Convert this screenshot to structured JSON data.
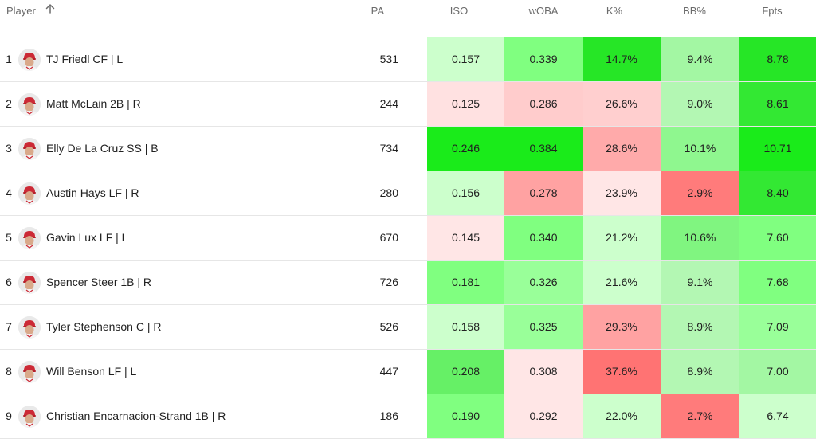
{
  "table": {
    "columns": {
      "player": "Player",
      "pa": "PA",
      "iso": "ISO",
      "woba": "wOBA",
      "k": "K%",
      "bb": "BB%",
      "fpts": "Fpts"
    },
    "sort_icon": "arrow-up-icon",
    "rows": [
      {
        "rank": "1",
        "player": "TJ Friedl CF | L",
        "pa": "531",
        "iso": "0.157",
        "woba": "0.339",
        "k": "14.7%",
        "bb": "9.4%",
        "fpts": "8.78",
        "colors": {
          "iso": "#ccffcc",
          "woba": "#80ff80",
          "k": "#26e626",
          "bb": "#a3f7a3",
          "fpts": "#26e626"
        }
      },
      {
        "rank": "2",
        "player": "Matt McLain 2B | R",
        "pa": "244",
        "iso": "0.125",
        "woba": "0.286",
        "k": "26.6%",
        "bb": "9.0%",
        "fpts": "8.61",
        "colors": {
          "iso": "#ffe1e1",
          "woba": "#ffcccc",
          "k": "#ffcfcf",
          "bb": "#b3f7b3",
          "fpts": "#33e833"
        }
      },
      {
        "rank": "3",
        "player": "Elly De La Cruz SS | B",
        "pa": "734",
        "iso": "0.246",
        "woba": "0.384",
        "k": "28.6%",
        "bb": "10.1%",
        "fpts": "10.71",
        "colors": {
          "iso": "#1aeb1a",
          "woba": "#1aeb1a",
          "k": "#ffaaaa",
          "bb": "#8ff78f",
          "fpts": "#1aeb1a"
        }
      },
      {
        "rank": "4",
        "player": "Austin Hays LF | R",
        "pa": "280",
        "iso": "0.156",
        "woba": "0.278",
        "k": "23.9%",
        "bb": "2.9%",
        "fpts": "8.40",
        "colors": {
          "iso": "#ccffcc",
          "woba": "#ffa2a2",
          "k": "#ffe6e6",
          "bb": "#ff7b7b",
          "fpts": "#33e833"
        }
      },
      {
        "rank": "5",
        "player": "Gavin Lux LF | L",
        "pa": "670",
        "iso": "0.145",
        "woba": "0.340",
        "k": "21.2%",
        "bb": "10.6%",
        "fpts": "7.60",
        "colors": {
          "iso": "#ffe6e6",
          "woba": "#80ff80",
          "k": "#ccffcc",
          "bb": "#80f580",
          "fpts": "#80ff80"
        }
      },
      {
        "rank": "6",
        "player": "Spencer Steer 1B | R",
        "pa": "726",
        "iso": "0.181",
        "woba": "0.326",
        "k": "21.6%",
        "bb": "9.1%",
        "fpts": "7.68",
        "colors": {
          "iso": "#80ff80",
          "woba": "#99ff99",
          "k": "#ccffcc",
          "bb": "#b3f7b3",
          "fpts": "#80ff80"
        }
      },
      {
        "rank": "7",
        "player": "Tyler Stephenson C | R",
        "pa": "526",
        "iso": "0.158",
        "woba": "0.325",
        "k": "29.3%",
        "bb": "8.9%",
        "fpts": "7.09",
        "colors": {
          "iso": "#ccffcc",
          "woba": "#99ff99",
          "k": "#ffa2a2",
          "bb": "#b3f7b3",
          "fpts": "#99ff99"
        }
      },
      {
        "rank": "8",
        "player": "Will Benson LF | L",
        "pa": "447",
        "iso": "0.208",
        "woba": "0.308",
        "k": "37.6%",
        "bb": "8.9%",
        "fpts": "7.00",
        "colors": {
          "iso": "#66f066",
          "woba": "#ffe6e6",
          "k": "#ff7373",
          "bb": "#b3f7b3",
          "fpts": "#a3f7a3"
        }
      },
      {
        "rank": "9",
        "player": "Christian Encarnacion-Strand 1B | R",
        "pa": "186",
        "iso": "0.190",
        "woba": "0.292",
        "k": "22.0%",
        "bb": "2.7%",
        "fpts": "6.74",
        "colors": {
          "iso": "#80ff80",
          "woba": "#ffe6e6",
          "k": "#ccffcc",
          "bb": "#ff7b7b",
          "fpts": "#ccffcc"
        }
      }
    ]
  }
}
